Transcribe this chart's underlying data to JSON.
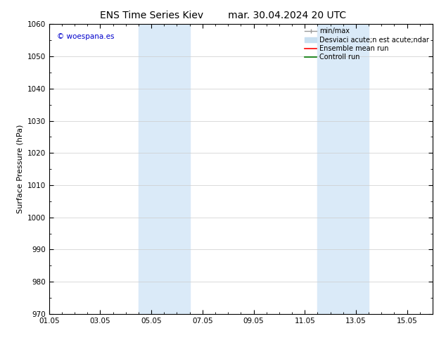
{
  "title_left": "ENS Time Series Kiev",
  "title_right": "mar. 30.04.2024 20 UTC",
  "ylabel": "Surface Pressure (hPa)",
  "ylim": [
    970,
    1060
  ],
  "yticks": [
    970,
    980,
    990,
    1000,
    1010,
    1020,
    1030,
    1040,
    1050,
    1060
  ],
  "xlim": [
    0,
    15
  ],
  "xtick_labels": [
    "01.05",
    "03.05",
    "05.05",
    "07.05",
    "09.05",
    "11.05",
    "13.05",
    "15.05"
  ],
  "xtick_positions": [
    0,
    2,
    4,
    6,
    8,
    10,
    12,
    14
  ],
  "shaded_bands": [
    {
      "x_start": 3.5,
      "x_end": 4.5,
      "color": "#daeaf8"
    },
    {
      "x_start": 4.5,
      "x_end": 5.5,
      "color": "#daeaf8"
    },
    {
      "x_start": 10.5,
      "x_end": 11.5,
      "color": "#daeaf8"
    },
    {
      "x_start": 11.5,
      "x_end": 12.5,
      "color": "#daeaf8"
    }
  ],
  "background_color": "#ffffff",
  "grid_color": "#cccccc",
  "copyright_text": "© woespana.es",
  "copyright_color": "#0000cc",
  "legend_labels": [
    "min/max",
    "Desviaci acute;n est acute;ndar",
    "Ensemble mean run",
    "Controll run"
  ],
  "legend_colors": [
    "#999999",
    "#c8dff0",
    "#ff0000",
    "#007700"
  ],
  "title_fontsize": 10,
  "axis_fontsize": 8,
  "tick_fontsize": 7.5,
  "legend_fontsize": 7
}
